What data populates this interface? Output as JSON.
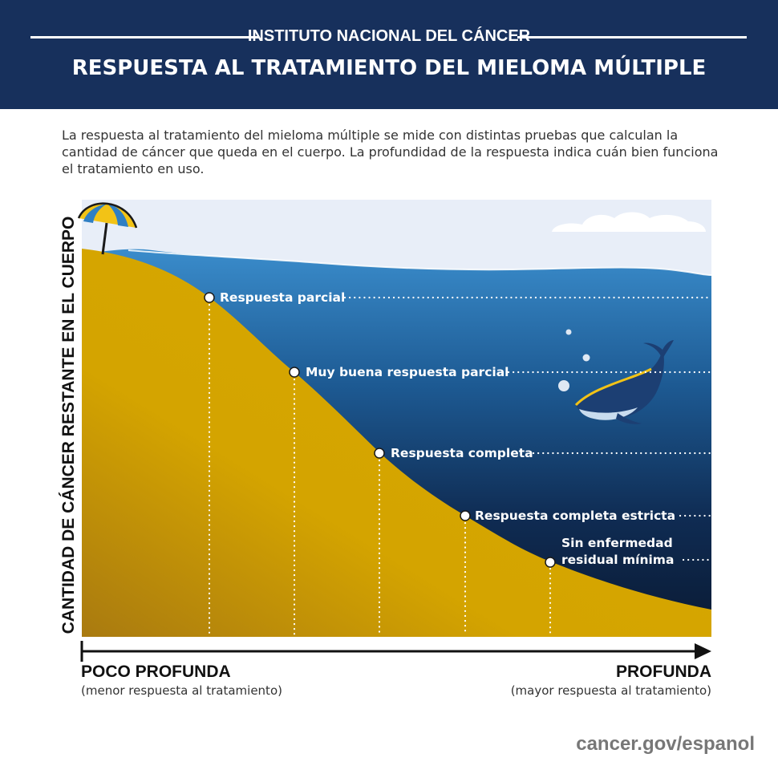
{
  "header": {
    "institute": "INSTITUTO NACIONAL DEL CÁNCER",
    "title": "RESPUESTA AL TRATAMIENTO DEL MIELOMA MÚLTIPLE"
  },
  "intro": "La respuesta al tratamiento del mieloma múltiple se mide con distintas pruebas que calculan la cantidad de cáncer que queda en el cuerpo. La profundidad de la respuesta indica cuán bien funciona el tratamiento en uso.",
  "diagram": {
    "y_axis_label": "CANTIDAD DE CÁNCER RESTANTE EN EL CUERPO",
    "x_axis": {
      "left_title": "POCO PROFUNDA",
      "left_subtitle": "(menor respuesta al tratamiento)",
      "right_title": "PROFUNDA",
      "right_subtitle": "(mayor respuesta al tratamiento)"
    },
    "levels": [
      {
        "label": "Respuesta parcial"
      },
      {
        "label": "Muy buena respuesta parcial"
      },
      {
        "label": "Respuesta completa"
      },
      {
        "label": "Respuesta completa estricta"
      },
      {
        "label_line1": "Sin enfermedad",
        "label_line2": "residual mínima"
      }
    ],
    "icons": [
      "beach-umbrella-icon",
      "cloud-icon",
      "whale-icon",
      "bubble-icon"
    ],
    "colors": {
      "header": "#17305c",
      "sand": "#d6a600",
      "sea_top": "#3a8ccb",
      "sea_bottom": "#0a1a33",
      "sky": "#e8eef8"
    }
  },
  "footer": {
    "site": "cancer.gov/espanol"
  }
}
